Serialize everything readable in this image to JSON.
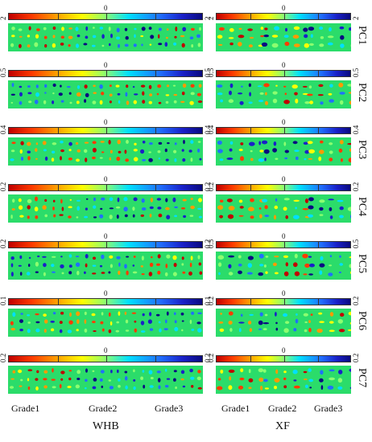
{
  "colormap": {
    "colors": [
      "#c00000",
      "#ff3b00",
      "#ff9a00",
      "#ffff00",
      "#8cff70",
      "#00e0ff",
      "#2070ff",
      "#1a20c8",
      "#0a0a80"
    ],
    "background_color": "#2bdc6a"
  },
  "columns": {
    "left": {
      "label": "WHB"
    },
    "right": {
      "label": "XF"
    }
  },
  "grades": [
    "Grade1",
    "Grade2",
    "Grade3"
  ],
  "rows": [
    {
      "pc": "PC1",
      "left": {
        "min": "2",
        "mid": "0",
        "max": "2"
      },
      "right": {
        "min": "2",
        "mid": "0",
        "max": "2"
      }
    },
    {
      "pc": "PC2",
      "left": {
        "min": "0.5",
        "mid": "0",
        "max": "0.5"
      },
      "right": {
        "min": "0.5",
        "mid": "0",
        "max": "0.5"
      }
    },
    {
      "pc": "PC3",
      "left": {
        "min": "0.4",
        "mid": "0",
        "max": "0.4"
      },
      "right": {
        "min": "0.4",
        "mid": "0",
        "max": "0.4"
      }
    },
    {
      "pc": "PC4",
      "left": {
        "min": "0.2",
        "mid": "0",
        "max": "0.2"
      },
      "right": {
        "min": "0.2",
        "mid": "0",
        "max": "0.2"
      }
    },
    {
      "pc": "PC5",
      "left": {
        "min": "0.2",
        "mid": "0",
        "max": "0.2"
      },
      "right": {
        "min": "0.5",
        "mid": "0",
        "max": "0.5"
      }
    },
    {
      "pc": "PC6",
      "left": {
        "min": "0.1",
        "mid": "0",
        "max": "0.1"
      },
      "right": {
        "min": "0.2",
        "mid": "0",
        "max": "0.2"
      }
    },
    {
      "pc": "PC7",
      "left": {
        "min": "0.2",
        "mid": "0",
        "max": "0.2"
      },
      "right": {
        "min": "0.2",
        "mid": "0",
        "max": "0.2"
      }
    }
  ]
}
